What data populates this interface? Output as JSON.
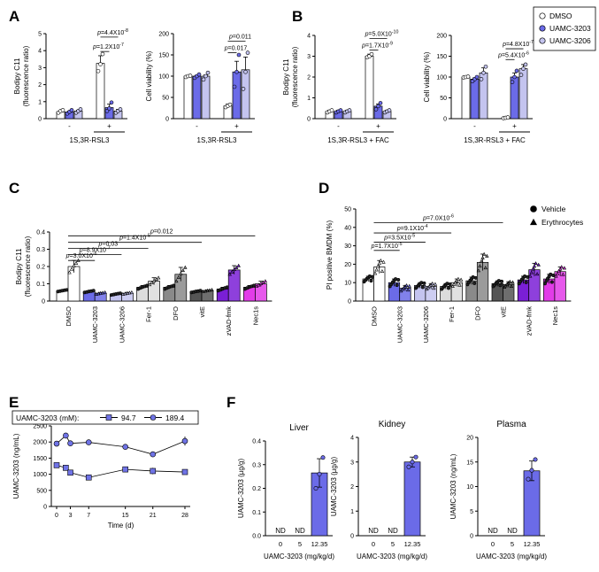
{
  "panel_labels": {
    "A": "A",
    "B": "B",
    "C": "C",
    "D": "D",
    "E": "E",
    "F": "F"
  },
  "colors": {
    "dmso": "#ffffff",
    "u3203": "#6b6be8",
    "u3206": "#c4c4ef",
    "vite": "#555555",
    "grey": "#8a8a8a",
    "lightgrey": "#dcdcdc",
    "zvad": "#7a1fd6",
    "nec": "#e23ce8",
    "line": "#000000",
    "eblue": "#6f73e6"
  },
  "legend_ab": {
    "items": [
      {
        "label": "DMSO",
        "color": "#ffffff"
      },
      {
        "label": "UAMC-3203",
        "color": "#6b6be8"
      },
      {
        "label": "UAMC-3206",
        "color": "#c4c4ef"
      }
    ]
  },
  "chart_data": [
    {
      "id": "A1",
      "type": "bar",
      "ylabel": "Bodipy C11\n(fluorescence ratio)",
      "ylim": [
        0,
        5
      ],
      "yticks": [
        0,
        1,
        2,
        3,
        4,
        5
      ],
      "groups": [
        "-",
        "+"
      ],
      "xlabel": "1S,3R-RSL3",
      "series": [
        "DMSO",
        "UAMC-3203",
        "UAMC-3206"
      ],
      "values": [
        [
          0.4,
          0.4,
          0.45
        ],
        [
          3.25,
          0.65,
          0.45
        ]
      ],
      "errors": [
        [
          0.05,
          0.05,
          0.05
        ],
        [
          0.45,
          0.2,
          0.1
        ]
      ],
      "points": [
        [
          [
            0.35,
            0.45,
            0.5
          ],
          [
            0.3,
            0.4,
            0.5
          ],
          [
            0.35,
            0.45,
            0.55
          ]
        ],
        [
          [
            2.8,
            3.2,
            3.8
          ],
          [
            0.45,
            0.6,
            0.95
          ],
          [
            0.35,
            0.45,
            0.55
          ]
        ]
      ],
      "annotations": [
        {
          "text": "p=1.2X10-7",
          "from": [
            1,
            0
          ],
          "to": [
            1,
            1
          ],
          "y": 3.95
        },
        {
          "text": "p=4.4X10-8",
          "from": [
            1,
            0
          ],
          "to": [
            1,
            2
          ],
          "y": 4.8
        }
      ]
    },
    {
      "id": "A2",
      "type": "bar",
      "ylabel": "Cell viability (%)",
      "ylim": [
        0,
        200
      ],
      "yticks": [
        0,
        50,
        100,
        150,
        200
      ],
      "groups": [
        "-",
        "+"
      ],
      "xlabel": "1S,3R-RSL3",
      "series": [
        "DMSO",
        "UAMC-3203",
        "UAMC-3206"
      ],
      "values": [
        [
          100,
          100,
          100
        ],
        [
          30,
          110,
          115
        ]
      ],
      "errors": [
        [
          2,
          2,
          3
        ],
        [
          4,
          25,
          30
        ]
      ],
      "points": [
        [
          [
            98,
            100,
            101
          ],
          [
            96,
            100,
            104
          ],
          [
            92,
            100,
            108
          ]
        ],
        [
          [
            27,
            30,
            33
          ],
          [
            75,
            110,
            150
          ],
          [
            70,
            110,
            155
          ]
        ]
      ],
      "annotations": [
        {
          "text": "p=0.017",
          "from": [
            1,
            0
          ],
          "to": [
            1,
            1
          ],
          "y": 155
        },
        {
          "text": "p=0.011",
          "from": [
            1,
            0
          ],
          "to": [
            1,
            2
          ],
          "y": 182
        }
      ]
    },
    {
      "id": "B1",
      "type": "bar",
      "ylabel": "Bodipy C11\n(fluorescence ratio)",
      "ylim": [
        0,
        4
      ],
      "yticks": [
        0,
        1,
        2,
        3,
        4
      ],
      "groups": [
        "-",
        "+"
      ],
      "xlabel": "1S,3R-RSL3 + FAC",
      "series": [
        "DMSO",
        "UAMC-3203",
        "UAMC-3206"
      ],
      "values": [
        [
          0.35,
          0.35,
          0.35
        ],
        [
          3.0,
          0.6,
          0.35
        ]
      ],
      "errors": [
        [
          0.05,
          0.05,
          0.05
        ],
        [
          0.1,
          0.1,
          0.05
        ]
      ],
      "points": [
        [
          [
            0.3,
            0.35,
            0.4
          ],
          [
            0.3,
            0.35,
            0.4
          ],
          [
            0.3,
            0.35,
            0.4
          ]
        ],
        [
          [
            2.95,
            3.0,
            3.1
          ],
          [
            0.45,
            0.6,
            0.75
          ],
          [
            0.3,
            0.35,
            0.4
          ]
        ]
      ],
      "annotations": [
        {
          "text": "p=1.7X10-9",
          "from": [
            1,
            0
          ],
          "to": [
            1,
            1
          ],
          "y": 3.3
        },
        {
          "text": "p=5.0X10-10",
          "from": [
            1,
            0
          ],
          "to": [
            1,
            2
          ],
          "y": 3.85
        }
      ]
    },
    {
      "id": "B2",
      "type": "bar",
      "ylabel": "Cell viability (%)",
      "ylim": [
        0,
        200
      ],
      "yticks": [
        0,
        50,
        100,
        150,
        200
      ],
      "groups": [
        "-",
        "+"
      ],
      "xlabel": "1S,3R-RSL3 + FAC",
      "series": [
        "DMSO",
        "UAMC-3203",
        "UAMC-3206"
      ],
      "values": [
        [
          100,
          95,
          110
        ],
        [
          2,
          100,
          120
        ]
      ],
      "errors": [
        [
          1,
          3,
          12
        ],
        [
          1,
          10,
          10
        ]
      ],
      "points": [
        [
          [
            99,
            100,
            101
          ],
          [
            90,
            95,
            100
          ],
          [
            95,
            110,
            125
          ]
        ],
        [
          [
            1,
            2,
            3
          ],
          [
            88,
            100,
            115
          ],
          [
            105,
            120,
            130
          ]
        ]
      ],
      "annotations": [
        {
          "text": "p=5.4X10-6",
          "from": [
            1,
            0
          ],
          "to": [
            1,
            1
          ],
          "y": 142
        },
        {
          "text": "p=4.8X10-7",
          "from": [
            1,
            0
          ],
          "to": [
            1,
            2
          ],
          "y": 168
        }
      ]
    },
    {
      "id": "C",
      "type": "bar",
      "ylabel": "Bodipy C11\n(fluorescence ratio)",
      "ylim": [
        0,
        0.4
      ],
      "yticks": [
        0,
        0.1,
        0.2,
        0.3,
        0.4
      ],
      "ytick_labels": [
        "0",
        "0.1",
        "0.2",
        "0.3",
        "0.4"
      ],
      "categories": [
        "DMSO",
        "UAMC-3203",
        "UAMC-3206",
        "Fer-1",
        "DFO",
        "vitE",
        "zVAD-fmk",
        "Nec1s"
      ],
      "values": [
        [
          0.06,
          0.2
        ],
        [
          0.055,
          0.045
        ],
        [
          0.04,
          0.045
        ],
        [
          0.08,
          0.115
        ],
        [
          0.08,
          0.155
        ],
        [
          0.055,
          0.06
        ],
        [
          0.07,
          0.18
        ],
        [
          0.08,
          0.1
        ]
      ],
      "errors": [
        [
          0.005,
          0.035
        ],
        [
          0.005,
          0.005
        ],
        [
          0.005,
          0.005
        ],
        [
          0.01,
          0.02
        ],
        [
          0.01,
          0.04
        ],
        [
          0.005,
          0.005
        ],
        [
          0.01,
          0.025
        ],
        [
          0.01,
          0.015
        ]
      ],
      "annotations": [
        {
          "text": "p=3.0X10-6",
          "from": 0.5,
          "to": 1.5,
          "y": 0.235
        },
        {
          "text": "p=8.9X10-7",
          "from": 0.5,
          "to": 2.5,
          "y": 0.27
        },
        {
          "text": "p=0.03",
          "from": 0.5,
          "to": 3.5,
          "y": 0.305
        },
        {
          "text": "p=1.4X10-5",
          "from": 0.5,
          "to": 5.5,
          "y": 0.34
        },
        {
          "text": "p=0.012",
          "from": 0.5,
          "to": 7.5,
          "y": 0.378
        }
      ]
    },
    {
      "id": "D",
      "type": "bar",
      "ylabel": "PI positive BMDM (%)",
      "ylim": [
        0,
        50
      ],
      "yticks": [
        0,
        10,
        20,
        30,
        40,
        50
      ],
      "categories": [
        "DMSO",
        "UAMC-3203",
        "UAMC-3206",
        "Fer-1",
        "DFO",
        "vitE",
        "zVAD-fmk",
        "Nec1s"
      ],
      "values": [
        [
          12,
          18.5
        ],
        [
          10,
          7
        ],
        [
          8.5,
          8
        ],
        [
          8,
          10
        ],
        [
          11,
          21
        ],
        [
          9.5,
          9
        ],
        [
          11.5,
          17
        ],
        [
          12,
          16
        ]
      ],
      "errors": [
        [
          1.5,
          3.5
        ],
        [
          2,
          1.5
        ],
        [
          1.5,
          1.5
        ],
        [
          1.5,
          2
        ],
        [
          2,
          4.5
        ],
        [
          1.5,
          1.5
        ],
        [
          2,
          3.5
        ],
        [
          2.5,
          2.5
        ]
      ],
      "legend": [
        {
          "label": "Vehicle",
          "marker": "circle"
        },
        {
          "label": "Erythrocytes",
          "marker": "triangle"
        }
      ],
      "annotations": [
        {
          "text": "p=1.7X10-5",
          "from": 0.5,
          "to": 1.5,
          "y": 27.5
        },
        {
          "text": "p=3.5X10-5",
          "from": 0.5,
          "to": 2.5,
          "y": 32
        },
        {
          "text": "p=9.1X10-4",
          "from": 0.5,
          "to": 3.5,
          "y": 37
        },
        {
          "text": "p=7.0X10-6",
          "from": 0.5,
          "to": 5.5,
          "y": 42.5
        }
      ]
    },
    {
      "id": "E",
      "type": "line",
      "title": "UAMC-3203 (mM):",
      "xlabel": "Time (d)",
      "ylabel": "UAMC-3203 (ng/mL)",
      "xlim": [
        0,
        28
      ],
      "ylim": [
        0,
        2500
      ],
      "xticks": [
        0,
        3,
        7,
        15,
        21,
        28
      ],
      "xtick_labels": [
        "0",
        "3",
        "7",
        "15",
        "21",
        "28"
      ],
      "yticks": [
        0,
        500,
        1000,
        1500,
        2000,
        2500
      ],
      "series": [
        {
          "name": "94.7",
          "marker": "square",
          "x": [
            0,
            2,
            3,
            7,
            15,
            21,
            28
          ],
          "y": [
            1280,
            1200,
            1050,
            900,
            1150,
            1100,
            1070
          ],
          "err": [
            30,
            40,
            30,
            40,
            40,
            100,
            50
          ]
        },
        {
          "name": "189.4",
          "marker": "circle",
          "x": [
            0,
            2,
            3,
            7,
            15,
            21,
            28
          ],
          "y": [
            1950,
            2200,
            1960,
            1990,
            1850,
            1620,
            2030
          ],
          "err": [
            40,
            80,
            60,
            40,
            40,
            40,
            140
          ]
        }
      ]
    },
    {
      "id": "F1",
      "type": "bar",
      "title": "Liver",
      "ylabel": "UAMC-3203 (µg/g)",
      "ylim": [
        0,
        0.4
      ],
      "yticks": [
        0,
        0.1,
        0.2,
        0.3,
        0.4
      ],
      "ytick_labels": [
        "0.0",
        "0.1",
        "0.2",
        "0.3",
        "0.4"
      ],
      "categories": [
        "0",
        "5",
        "12.35"
      ],
      "values": [
        null,
        null,
        0.265
      ],
      "errors": [
        0,
        0,
        0.06
      ],
      "labels": [
        "ND",
        "ND",
        ""
      ],
      "points": [
        [],
        [],
        [
          0.2,
          0.26,
          0.33
        ]
      ],
      "xlabel": "UAMC-3203 (mg/kg/d)"
    },
    {
      "id": "F2",
      "type": "bar",
      "title": "Kidney",
      "ylabel": "UAMC-3203 (µg/g)",
      "ylim": [
        0,
        4
      ],
      "yticks": [
        0,
        1,
        2,
        3,
        4
      ],
      "ytick_labels": [
        "0",
        "1",
        "2",
        "3",
        "4"
      ],
      "categories": [
        "0",
        "5",
        "12.35"
      ],
      "values": [
        null,
        null,
        3.0
      ],
      "errors": [
        0,
        0,
        0.2
      ],
      "labels": [
        "ND",
        "ND",
        ""
      ],
      "points": [
        [],
        [],
        [
          2.8,
          3.0,
          3.2
        ]
      ],
      "xlabel": "UAMC-3203 (mg/kg/d)"
    },
    {
      "id": "F3",
      "type": "bar",
      "title": "Plasma",
      "ylabel": "UAMC-3203 (ng/mL)",
      "ylim": [
        0,
        20
      ],
      "yticks": [
        0,
        5,
        10,
        15,
        20
      ],
      "ytick_labels": [
        "0",
        "5",
        "10",
        "15",
        "20"
      ],
      "categories": [
        "0",
        "5",
        "12.35"
      ],
      "values": [
        null,
        null,
        13.2
      ],
      "errors": [
        0,
        0,
        2
      ],
      "labels": [
        "ND",
        "ND",
        ""
      ],
      "points": [
        [],
        [],
        [
          11.5,
          13.3,
          15.5
        ]
      ],
      "xlabel": "UAMC-3203 (mg/kg/d)"
    }
  ]
}
